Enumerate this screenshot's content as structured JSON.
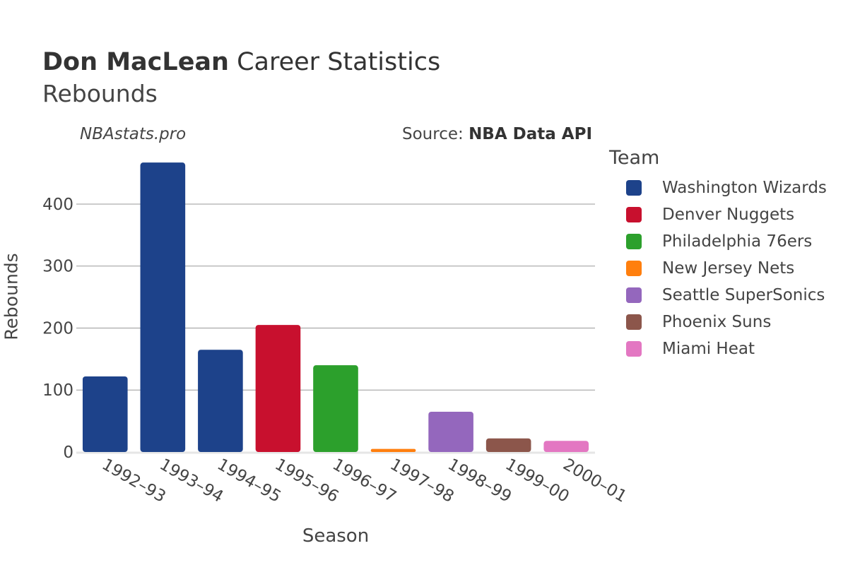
{
  "header": {
    "title_name": "Don MacLean",
    "title_rest": " Career Statistics",
    "subtitle": "Rebounds",
    "watermark": "NBAstats.pro",
    "source_prefix": "Source: ",
    "source_name": "NBA Data API"
  },
  "legend": {
    "title": "Team",
    "items": [
      {
        "label": "Washington Wizards",
        "color": "#1d428a"
      },
      {
        "label": "Denver Nuggets",
        "color": "#c8102e"
      },
      {
        "label": "Philadelphia 76ers",
        "color": "#2ca02c"
      },
      {
        "label": "New Jersey Nets",
        "color": "#ff7f0e"
      },
      {
        "label": "Seattle SuperSonics",
        "color": "#9467bd"
      },
      {
        "label": "Phoenix Suns",
        "color": "#8c564b"
      },
      {
        "label": "Miami Heat",
        "color": "#e377c2"
      }
    ]
  },
  "chart_data": {
    "type": "bar",
    "title": "Don MacLean Career Statistics",
    "subtitle": "Rebounds",
    "xlabel": "Season",
    "ylabel": "Rebounds",
    "ylim": [
      0,
      490
    ],
    "yticks": [
      0,
      100,
      200,
      300,
      400
    ],
    "grid": true,
    "legend_position": "right",
    "categories": [
      "1992–93",
      "1993–94",
      "1994–95",
      "1995–96",
      "1996–97",
      "1997–98",
      "1998–99",
      "1999–00",
      "2000–01"
    ],
    "values": [
      122,
      467,
      165,
      205,
      140,
      5,
      65,
      22,
      18
    ],
    "teams": [
      "Washington Wizards",
      "Washington Wizards",
      "Washington Wizards",
      "Denver Nuggets",
      "Philadelphia 76ers",
      "New Jersey Nets",
      "Seattle SuperSonics",
      "Phoenix Suns",
      "Miami Heat"
    ],
    "colors": [
      "#1d428a",
      "#1d428a",
      "#1d428a",
      "#c8102e",
      "#2ca02c",
      "#ff7f0e",
      "#9467bd",
      "#8c564b",
      "#e377c2"
    ]
  }
}
